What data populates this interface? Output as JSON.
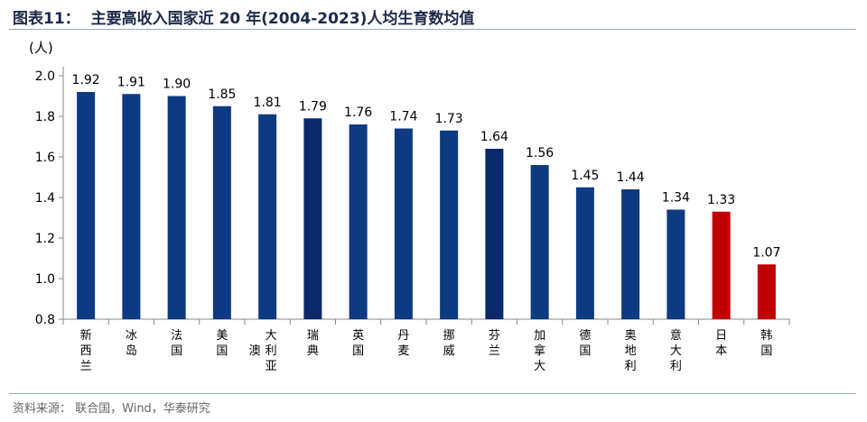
{
  "header": {
    "number": "图表11：",
    "title": "主要高收入国家近 20 年(2004-2023)人均生育数均值"
  },
  "source": "资料来源： 联合国，Wind，华泰研究",
  "colors": {
    "blue": "#0e3a82",
    "navy": "#0b2a6b",
    "red": "#c00000",
    "axis": "#888888"
  },
  "chart_data": {
    "type": "bar",
    "title": "主要高收入国家近 20 年(2004-2023)人均生育数均值",
    "ylabel": "(人)",
    "ylim": [
      0.8,
      2.0
    ],
    "yticks": [
      "0.8",
      "1.0",
      "1.2",
      "1.4",
      "1.6",
      "1.8",
      "2.0"
    ],
    "categories": [
      "新西兰",
      "冰岛",
      "法国",
      "美国",
      "澳大利亚",
      "瑞典",
      "英国",
      "丹麦",
      "挪威",
      "芬兰",
      "加拿大",
      "德国",
      "奥地利",
      "意大利",
      "日本",
      "韩国"
    ],
    "values": [
      1.92,
      1.91,
      1.9,
      1.85,
      1.81,
      1.79,
      1.76,
      1.74,
      1.73,
      1.64,
      1.56,
      1.45,
      1.44,
      1.34,
      1.33,
      1.07
    ],
    "value_labels": [
      "1.92",
      "1.91",
      "1.90",
      "1.85",
      "1.81",
      "1.79",
      "1.76",
      "1.74",
      "1.73",
      "1.64",
      "1.56",
      "1.45",
      "1.44",
      "1.34",
      "1.33",
      "1.07"
    ],
    "bar_colors": [
      "#0e3a82",
      "#0e3a82",
      "#0e3a82",
      "#0e3a82",
      "#0e3a82",
      "#0b2a6b",
      "#0e3a82",
      "#0e3a82",
      "#0e3a82",
      "#0b2a6b",
      "#0e3a82",
      "#0e3a82",
      "#0e3a82",
      "#0e3a82",
      "#c00000",
      "#c00000"
    ]
  }
}
